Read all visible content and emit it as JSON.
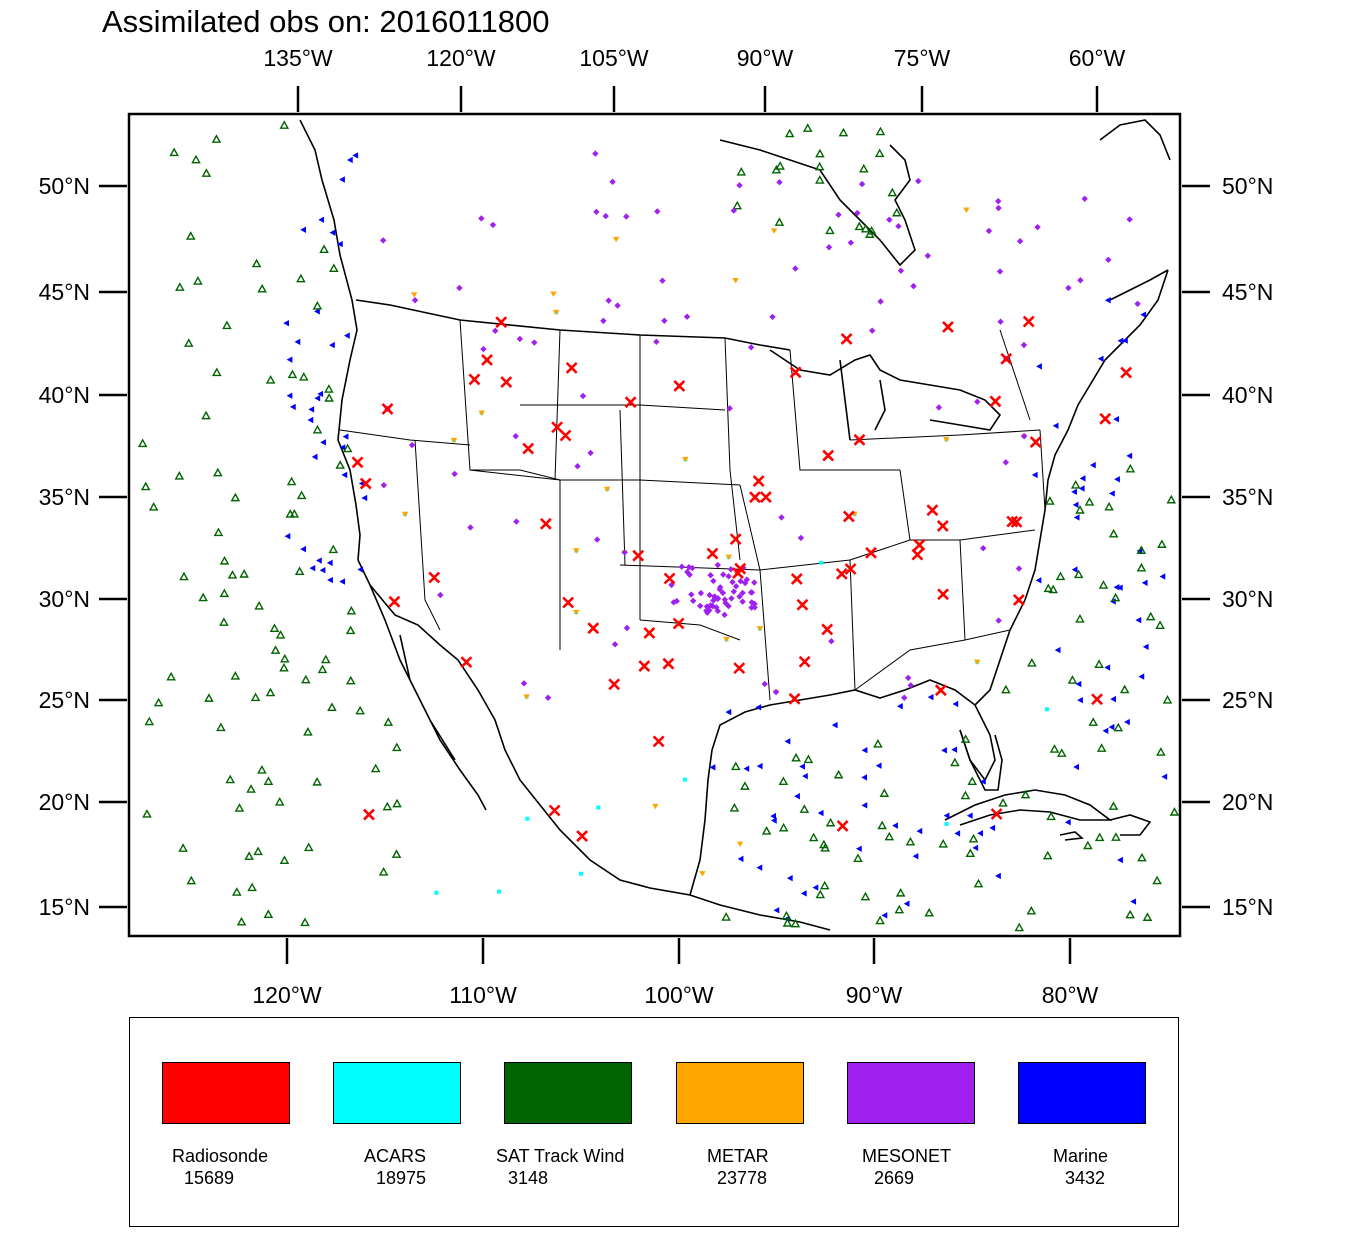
{
  "title": "Assimilated obs on: 2016011800",
  "colors": {
    "radiosonde": "#ff0000",
    "acars": "#00ffff",
    "sat_track_wind": "#006400",
    "metar": "#ffa500",
    "mesonet": "#a020f0",
    "marine": "#0000ff",
    "land_outline": "#000000"
  },
  "map": {
    "projection": "lambert-conformal",
    "top_lon_labels": [
      "135°W",
      "120°W",
      "105°W",
      "90°W",
      "75°W",
      "60°W"
    ],
    "bottom_lon_labels": [
      "120°W",
      "110°W",
      "100°W",
      "90°W",
      "80°W"
    ],
    "left_lat_labels": [
      "50°N",
      "45°N",
      "40°N",
      "35°N",
      "30°N",
      "25°N",
      "20°N",
      "15°N"
    ],
    "right_lat_labels": [
      "50°N",
      "45°N",
      "40°N",
      "35°N",
      "30°N",
      "25°N",
      "20°N",
      "15°N"
    ]
  },
  "legend": [
    {
      "key": "radiosonde",
      "label": "Radiosonde",
      "count": "15689",
      "color": "#ff0000",
      "marker": "x"
    },
    {
      "key": "acars",
      "label": "ACARS",
      "count": "18975",
      "color": "#00ffff",
      "marker": "square"
    },
    {
      "key": "sat_track_wind",
      "label": "SAT Track Wind",
      "count": "3148",
      "color": "#006400",
      "marker": "triangle-up"
    },
    {
      "key": "metar",
      "label": "METAR",
      "count": "23778",
      "color": "#ffa500",
      "marker": "triangle-down"
    },
    {
      "key": "mesonet",
      "label": "MESONET",
      "count": "2669",
      "color": "#a020f0",
      "marker": "diamond"
    },
    {
      "key": "marine",
      "label": "Marine",
      "count": "3432",
      "color": "#0000ff",
      "marker": "triangle-left"
    }
  ]
}
